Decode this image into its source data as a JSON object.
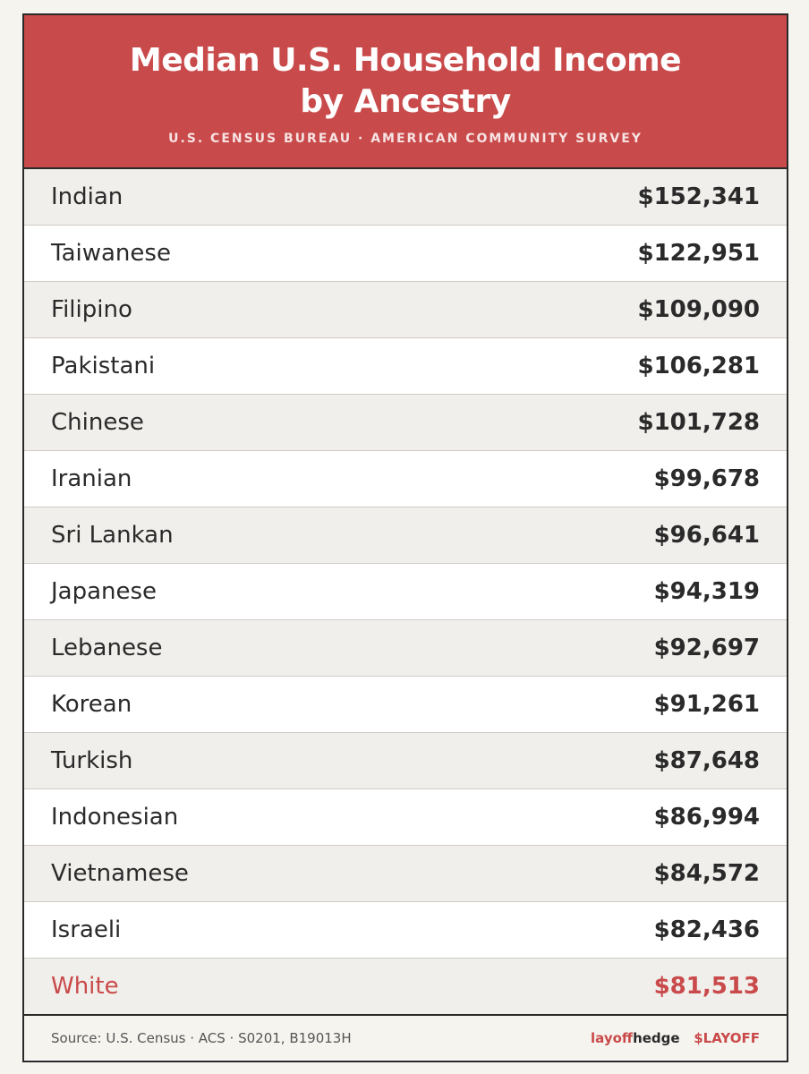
{
  "header": {
    "title": [
      "Median U.S. Household Income",
      "by Ancestry"
    ],
    "subtitle": "U.S. CENSUS BUREAU · AMERICAN COMMUNITY SURVEY"
  },
  "table": {
    "rows": [
      [
        "Indian",
        "$152,341"
      ],
      [
        "Taiwanese",
        "$122,951"
      ],
      [
        "Filipino",
        "$109,090"
      ],
      [
        "Pakistani",
        "$106,281"
      ],
      [
        "Chinese",
        "$101,728"
      ],
      [
        "Iranian",
        "$99,678"
      ],
      [
        "Sri Lankan",
        "$96,641"
      ],
      [
        "Japanese",
        "$94,319"
      ],
      [
        "Lebanese",
        "$92,697"
      ],
      [
        "Korean",
        "$91,261"
      ],
      [
        "Turkish",
        "$87,648"
      ],
      [
        "Indonesian",
        "$86,994"
      ],
      [
        "Vietnamese",
        "$84,572"
      ],
      [
        "Israeli",
        "$82,436"
      ],
      [
        "White",
        "$81,513"
      ]
    ]
  },
  "footer": {
    "source": "Source: U.S. Census · ACS · S0201, B19013H",
    "brand": [
      "layoff",
      "hedge"
    ],
    "ticker": "$LAYOFF"
  }
}
